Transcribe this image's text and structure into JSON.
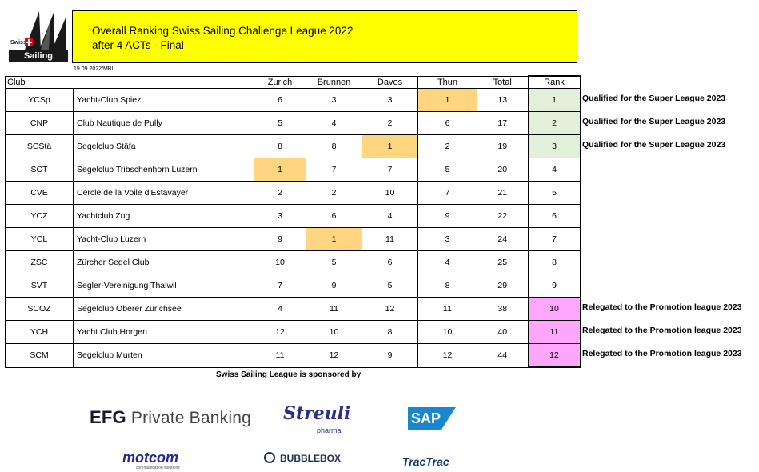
{
  "logo": {
    "swiss": "Swiss",
    "wordmark": "Sailing League"
  },
  "title": {
    "line1": "Overall Ranking Swiss Sailing Challenge League 2022",
    "line2": "after 4 ACTs - Final"
  },
  "date_stamp": "19.09.2022/MBL",
  "table": {
    "headers": [
      "Club",
      "Zurich",
      "Brunnen",
      "Davos",
      "Thun",
      "Total",
      "Rank"
    ],
    "rows": [
      {
        "code": "YCSp",
        "name": "Yacht-Club Spiez",
        "zurich": "6",
        "brunnen": "3",
        "davos": "3",
        "thun": "1",
        "total": "13",
        "rank": "1"
      },
      {
        "code": "CNP",
        "name": "Club Nautique de Pully",
        "zurich": "5",
        "brunnen": "4",
        "davos": "2",
        "thun": "6",
        "total": "17",
        "rank": "2"
      },
      {
        "code": "SCStä",
        "name": "Segelclub Stäfa",
        "zurich": "8",
        "brunnen": "8",
        "davos": "1",
        "thun": "2",
        "total": "19",
        "rank": "3"
      },
      {
        "code": "SCT",
        "name": "Segelclub Tribschenhorn Luzern",
        "zurich": "1",
        "brunnen": "7",
        "davos": "7",
        "thun": "5",
        "total": "20",
        "rank": "4"
      },
      {
        "code": "CVE",
        "name": "Cercle de la Voile d'Estavayer",
        "zurich": "2",
        "brunnen": "2",
        "davos": "10",
        "thun": "7",
        "total": "21",
        "rank": "5"
      },
      {
        "code": "YCZ",
        "name": "Yachtclub Zug",
        "zurich": "3",
        "brunnen": "6",
        "davos": "4",
        "thun": "9",
        "total": "22",
        "rank": "6"
      },
      {
        "code": "YCL",
        "name": "Yacht-Club Luzern",
        "zurich": "9",
        "brunnen": "1",
        "davos": "11",
        "thun": "3",
        "total": "24",
        "rank": "7"
      },
      {
        "code": "ZSC",
        "name": "Zürcher Segel Club",
        "zurich": "10",
        "brunnen": "5",
        "davos": "6",
        "thun": "4",
        "total": "25",
        "rank": "8"
      },
      {
        "code": "SVT",
        "name": "Segler-Vereinigung Thalwil",
        "zurich": "7",
        "brunnen": "9",
        "davos": "5",
        "thun": "8",
        "total": "29",
        "rank": "9"
      },
      {
        "code": "SCOZ",
        "name": "Segelclub Oberer Zürichsee",
        "zurich": "4",
        "brunnen": "11",
        "davos": "12",
        "thun": "11",
        "total": "38",
        "rank": "10"
      },
      {
        "code": "YCH",
        "name": "Yacht Club Horgen",
        "zurich": "12",
        "brunnen": "10",
        "davos": "8",
        "thun": "10",
        "total": "40",
        "rank": "11"
      },
      {
        "code": "SCM",
        "name": "Segelclub Murten",
        "zurich": "11",
        "brunnen": "12",
        "davos": "9",
        "thun": "12",
        "total": "44",
        "rank": "12"
      }
    ]
  },
  "notes": {
    "qualified": "Qualified for the Super League 2023",
    "relegated": "Relegated to the Promotion league 2023"
  },
  "sponsors": {
    "title": "Swiss Sailing League is sponsored by",
    "efg_mark": "EFG",
    "efg_text": "Private Banking",
    "streuli": "Streuli",
    "streuli_sub": "pharma",
    "sap": "SAP",
    "motcom": "motcom",
    "motcom_sub": "communication solutions",
    "bubblebox": "BUBBLEBOX",
    "tractrac": "TracTrac"
  },
  "colors": {
    "title_bg": "#ffff00",
    "act_win": "#ffd580",
    "qualified": "#e2f0d9",
    "relegated": "#ffa6ff"
  }
}
